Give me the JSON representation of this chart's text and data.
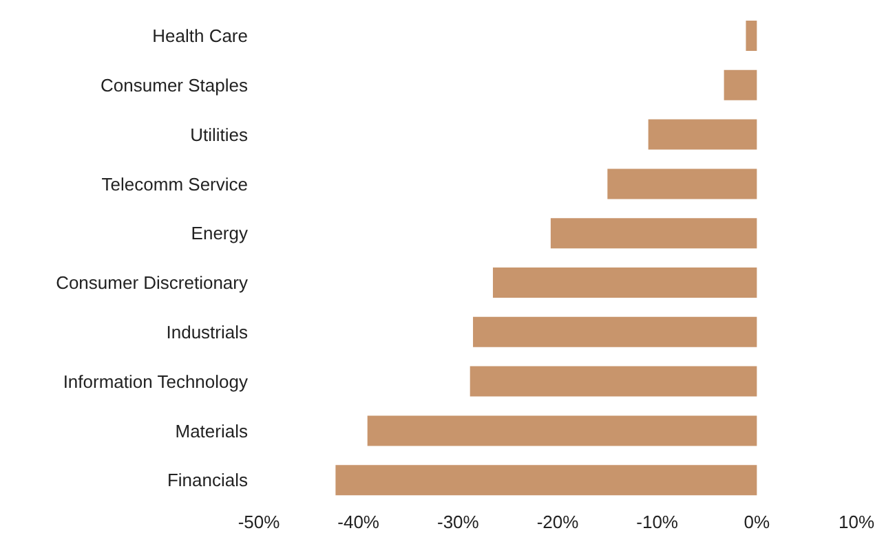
{
  "chart_data": {
    "type": "bar",
    "orientation": "horizontal",
    "categories": [
      "Health Care",
      "Consumer Staples",
      "Utilities",
      "Telecomm Service",
      "Energy",
      "Consumer Discretionary",
      "Industrials",
      "Information Technology",
      "Materials",
      "Financials"
    ],
    "values": [
      -1.1,
      -3.3,
      -10.9,
      -15,
      -20.7,
      -26.5,
      -28.5,
      -28.8,
      -39.1,
      -42.3
    ],
    "color": "#c8956c",
    "xlim": [
      -50,
      10
    ],
    "xticks": [
      {
        "value": -50,
        "label": "-50%"
      },
      {
        "value": -40,
        "label": "-40%"
      },
      {
        "value": -30,
        "label": "-30%"
      },
      {
        "value": -20,
        "label": "-20%"
      },
      {
        "value": -10,
        "label": "-10%"
      },
      {
        "value": 0,
        "label": "0%"
      },
      {
        "value": 10,
        "label": "10%"
      }
    ],
    "grid": false,
    "legend": false
  }
}
